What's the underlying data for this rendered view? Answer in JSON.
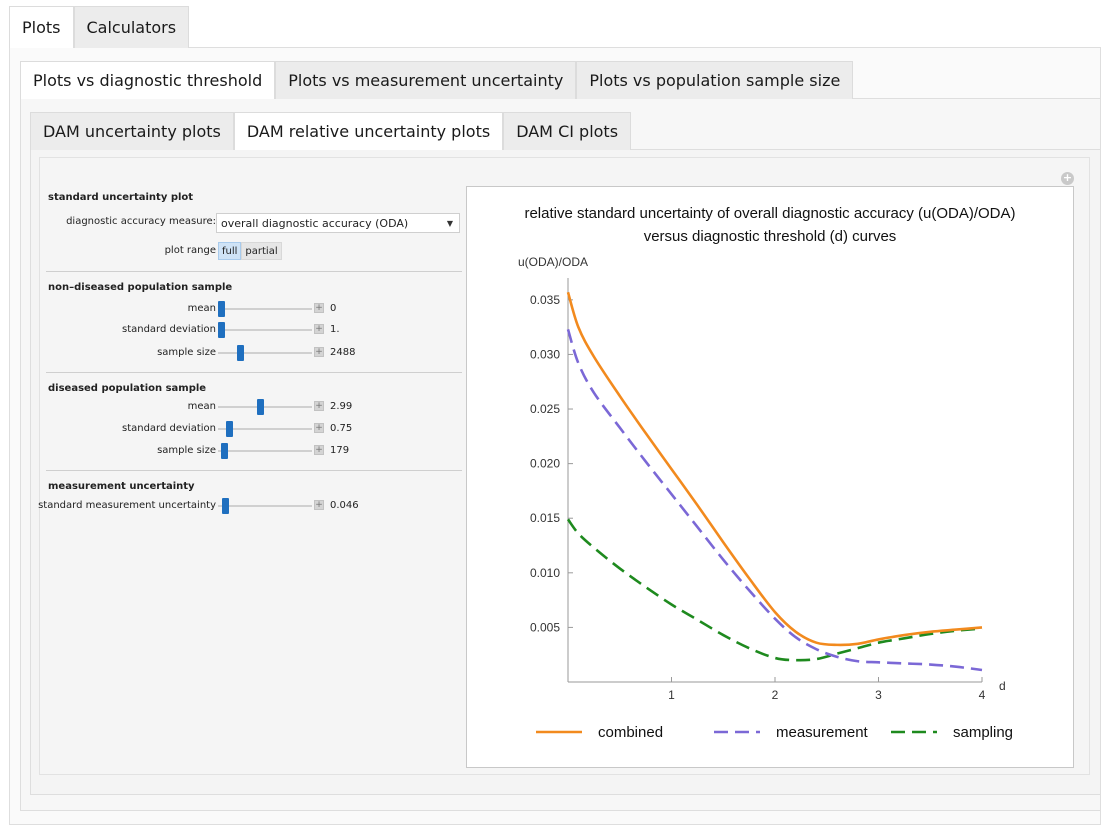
{
  "tabs_top": [
    {
      "label": "Plots",
      "active": true
    },
    {
      "label": "Calculators",
      "active": false
    }
  ],
  "tabs_second": [
    {
      "label": "Plots vs diagnostic threshold",
      "active": true
    },
    {
      "label": "Plots vs measurement uncertainty",
      "active": false
    },
    {
      "label": "Plots vs population sample size",
      "active": false
    }
  ],
  "tabs_third": [
    {
      "label": "DAM uncertainty plots",
      "active": false
    },
    {
      "label": "DAM relative uncertainty plots",
      "active": true
    },
    {
      "label": "DAM CI plots",
      "active": false
    }
  ],
  "controls": {
    "section1": {
      "title": "standard uncertainty plot",
      "dam_label": "diagnostic accuracy measure:",
      "dam_value": "overall diagnostic accuracy (ODA)",
      "range_label": "plot range",
      "range_full": "full",
      "range_partial": "partial"
    },
    "section2": {
      "title": "non–diseased population sample",
      "mean_label": "mean",
      "mean_value": "0",
      "mean_pos": 0.0,
      "sd_label": "standard deviation",
      "sd_value": "1.",
      "sd_pos": 0.0,
      "n_label": "sample size",
      "n_value": "2488",
      "n_pos": 0.22
    },
    "section3": {
      "title": "diseased population sample",
      "mean_label": "mean",
      "mean_value": "2.99",
      "mean_pos": 0.45,
      "sd_label": "standard deviation",
      "sd_value": "0.75",
      "sd_pos": 0.09,
      "n_label": "sample size",
      "n_value": "179",
      "n_pos": 0.03
    },
    "section4": {
      "title": "measurement uncertainty",
      "mu_label": "standard measurement uncertainty",
      "mu_value": "0.046",
      "mu_pos": 0.05
    }
  },
  "chart_data": {
    "type": "line",
    "title": "relative standard uncertainty of overall diagnostic accuracy (u(ODA)/ODA)",
    "subtitle": "versus diagnostic threshold (d) curves",
    "xlabel": "d",
    "ylabel": "u(ODA)/ODA",
    "xlim": [
      0,
      4
    ],
    "ylim": [
      0,
      0.037
    ],
    "xticks": [
      1,
      2,
      3,
      4
    ],
    "yticks": [
      0.005,
      0.01,
      0.015,
      0.02,
      0.025,
      0.03,
      0.035
    ],
    "ytick_labels": [
      "0.005",
      "0.010",
      "0.015",
      "0.020",
      "0.025",
      "0.030",
      "0.035"
    ],
    "legend_position": "bottom",
    "series": [
      {
        "name": "combined",
        "color": "#f28a1e",
        "dash": "solid",
        "x": [
          0,
          0.1,
          0.25,
          0.5,
          0.75,
          1.0,
          1.25,
          1.5,
          1.75,
          2.0,
          2.2,
          2.4,
          2.6,
          2.8,
          3.0,
          3.25,
          3.5,
          3.75,
          4.0
        ],
        "y": [
          0.0357,
          0.0325,
          0.0298,
          0.0262,
          0.0228,
          0.0195,
          0.0162,
          0.0128,
          0.0095,
          0.0064,
          0.0046,
          0.0036,
          0.0034,
          0.0035,
          0.0039,
          0.0043,
          0.0046,
          0.0048,
          0.005
        ]
      },
      {
        "name": "measurement",
        "color": "#7b68d6",
        "dash": "dashed",
        "x": [
          0,
          0.1,
          0.25,
          0.5,
          0.75,
          1.0,
          1.25,
          1.5,
          1.75,
          2.0,
          2.2,
          2.4,
          2.6,
          2.8,
          3.0,
          3.25,
          3.5,
          3.75,
          4.0
        ],
        "y": [
          0.0323,
          0.0292,
          0.0265,
          0.0233,
          0.0202,
          0.0172,
          0.0142,
          0.0112,
          0.0084,
          0.0058,
          0.0041,
          0.003,
          0.0023,
          0.0019,
          0.0018,
          0.0017,
          0.0016,
          0.0014,
          0.0011
        ]
      },
      {
        "name": "sampling",
        "color": "#1e8a1e",
        "dash": "dashed",
        "x": [
          0,
          0.1,
          0.25,
          0.5,
          0.75,
          1.0,
          1.25,
          1.5,
          1.75,
          2.0,
          2.2,
          2.4,
          2.6,
          2.8,
          3.0,
          3.25,
          3.5,
          3.75,
          4.0
        ],
        "y": [
          0.0149,
          0.0136,
          0.0123,
          0.0104,
          0.0087,
          0.0071,
          0.0057,
          0.0043,
          0.0031,
          0.0022,
          0.002,
          0.0021,
          0.0026,
          0.0031,
          0.0036,
          0.004,
          0.0044,
          0.0047,
          0.0049
        ]
      }
    ]
  }
}
